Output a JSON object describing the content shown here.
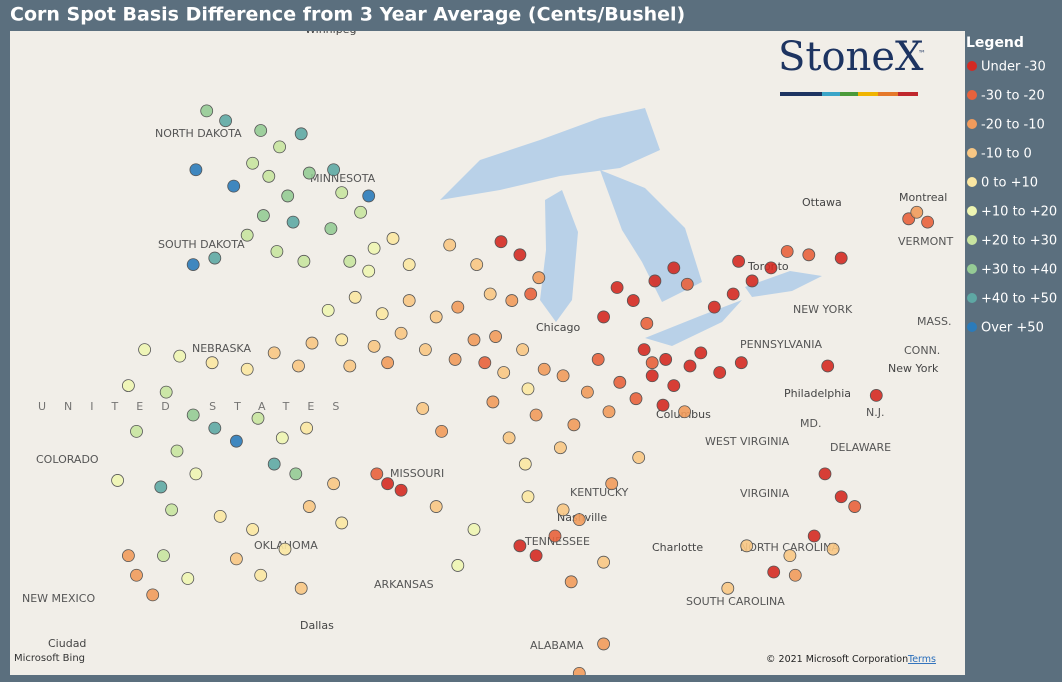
{
  "header": {
    "title": "Corn Spot Basis Difference from 3 Year Average (Cents/Bushel)"
  },
  "legend": {
    "title": "Legend",
    "classes": [
      {
        "label": "Under -30",
        "color": "#d42a22"
      },
      {
        "label": "-30 to -20",
        "color": "#e8623c"
      },
      {
        "label": "-20 to -10",
        "color": "#f19b5c"
      },
      {
        "label": "-10 to 0",
        "color": "#f8c784"
      },
      {
        "label": "0 to +10",
        "color": "#fbe7a2"
      },
      {
        "label": "+10 to +20",
        "color": "#eef5b2"
      },
      {
        "label": "+20 to +30",
        "color": "#c8e4a0"
      },
      {
        "label": "+30 to +40",
        "color": "#95cb95"
      },
      {
        "label": "+40 to +50",
        "color": "#5ea8a4"
      },
      {
        "label": "Over +50",
        "color": "#2b7bba"
      }
    ]
  },
  "logo": {
    "text": "StoneX",
    "mark": "™"
  },
  "attribution": {
    "copyright": "© 2021 Microsoft Corporation",
    "terms": "Terms",
    "provider": "Microsoft Bing"
  },
  "map": {
    "labels": [
      "NORTH DAKOTA",
      "MINNESOTA",
      "SOUTH DAKOTA",
      "NEBRASKA",
      "COLORADO",
      "MISSOURI",
      "KENTUCKY",
      "TENNESSEE",
      "OKLAHOMA",
      "ARKANSAS",
      "NEW MEXICO",
      "ALABAMA",
      "WEST VIRGINIA",
      "VIRGINIA",
      "NORTH CAROLINA",
      "SOUTH CAROLINA",
      "PENNSYLVANIA",
      "NEW YORK",
      "VERMONT",
      "MASS.",
      "CONN.",
      "N.J.",
      "MD.",
      "DELAWARE",
      "Ottawa",
      "Montreal",
      "Toronto",
      "Chicago",
      "Columbus",
      "Philadelphia",
      "New York",
      "Nashville",
      "Charlotte",
      "Dallas",
      "Ciudad",
      "Winnipeg",
      "UNITED STATES"
    ],
    "points": [
      [
        -100.5,
        48.6,
        7
      ],
      [
        -99.8,
        48.3,
        8
      ],
      [
        -98.5,
        48.0,
        7
      ],
      [
        -97.8,
        47.5,
        6
      ],
      [
        -98.8,
        47.0,
        6
      ],
      [
        -100.9,
        46.8,
        9
      ],
      [
        -99.5,
        46.3,
        9
      ],
      [
        -98.2,
        46.6,
        6
      ],
      [
        -97.5,
        46.0,
        7
      ],
      [
        -98.4,
        45.4,
        7
      ],
      [
        -99.0,
        44.8,
        6
      ],
      [
        -97.9,
        44.3,
        6
      ],
      [
        -101.0,
        43.9,
        9
      ],
      [
        -100.2,
        44.1,
        8
      ],
      [
        -97.3,
        45.2,
        8
      ],
      [
        -96.9,
        44.0,
        6
      ],
      [
        -96.7,
        46.7,
        7
      ],
      [
        -97.0,
        47.9,
        8
      ],
      [
        -95.5,
        46.1,
        6
      ],
      [
        -94.8,
        45.5,
        6
      ],
      [
        -95.9,
        45.0,
        7
      ],
      [
        -94.3,
        44.4,
        5
      ],
      [
        -95.2,
        44.0,
        6
      ],
      [
        -93.6,
        44.7,
        4
      ],
      [
        -93.0,
        43.9,
        4
      ],
      [
        -94.5,
        43.7,
        5
      ],
      [
        -95.8,
        46.8,
        8
      ],
      [
        -94.5,
        46.0,
        9
      ],
      [
        -91.5,
        44.5,
        3
      ],
      [
        -90.5,
        43.9,
        3
      ],
      [
        -89.6,
        44.6,
        0
      ],
      [
        -88.9,
        44.2,
        0
      ],
      [
        -88.2,
        43.5,
        2
      ],
      [
        -90.0,
        43.0,
        3
      ],
      [
        -89.2,
        42.8,
        2
      ],
      [
        -88.5,
        43.0,
        1
      ],
      [
        -96.0,
        42.5,
        5
      ],
      [
        -95.0,
        42.9,
        4
      ],
      [
        -94.0,
        42.4,
        4
      ],
      [
        -93.0,
        42.8,
        3
      ],
      [
        -92.0,
        42.3,
        3
      ],
      [
        -91.2,
        42.6,
        2
      ],
      [
        -95.5,
        41.6,
        4
      ],
      [
        -94.3,
        41.4,
        3
      ],
      [
        -93.3,
        41.8,
        3
      ],
      [
        -92.4,
        41.3,
        3
      ],
      [
        -91.3,
        41.0,
        2
      ],
      [
        -90.6,
        41.6,
        2
      ],
      [
        -95.2,
        40.8,
        3
      ],
      [
        -93.8,
        40.9,
        2
      ],
      [
        -89.8,
        41.7,
        2
      ],
      [
        -88.8,
        41.3,
        3
      ],
      [
        -89.5,
        40.6,
        3
      ],
      [
        -88.6,
        40.1,
        4
      ],
      [
        -89.9,
        39.7,
        2
      ],
      [
        -88.3,
        39.3,
        2
      ],
      [
        -89.3,
        38.6,
        3
      ],
      [
        -90.2,
        40.9,
        1
      ],
      [
        -88.0,
        40.7,
        2
      ],
      [
        -88.7,
        37.8,
        4
      ],
      [
        -87.3,
        40.5,
        2
      ],
      [
        -86.4,
        40.0,
        2
      ],
      [
        -85.6,
        39.4,
        2
      ],
      [
        -86.9,
        39.0,
        2
      ],
      [
        -86.0,
        41.0,
        1
      ],
      [
        -85.2,
        40.3,
        1
      ],
      [
        -87.4,
        38.3,
        3
      ],
      [
        -85.8,
        42.3,
        0
      ],
      [
        -84.7,
        42.8,
        0
      ],
      [
        -83.9,
        43.4,
        0
      ],
      [
        -83.2,
        43.8,
        0
      ],
      [
        -82.7,
        43.3,
        1
      ],
      [
        -84.2,
        42.1,
        1
      ],
      [
        -85.3,
        43.2,
        0
      ],
      [
        -84.3,
        41.3,
        0
      ],
      [
        -83.5,
        41.0,
        0
      ],
      [
        -84.0,
        40.5,
        0
      ],
      [
        -83.2,
        40.2,
        0
      ],
      [
        -82.6,
        40.8,
        0
      ],
      [
        -84.6,
        39.8,
        1
      ],
      [
        -83.6,
        39.6,
        0
      ],
      [
        -82.2,
        41.2,
        0
      ],
      [
        -81.5,
        40.6,
        0
      ],
      [
        -82.8,
        39.4,
        2
      ],
      [
        -84.0,
        40.9,
        1
      ],
      [
        -81.0,
        43.0,
        0
      ],
      [
        -80.3,
        43.4,
        0
      ],
      [
        -79.6,
        43.8,
        0
      ],
      [
        -81.7,
        42.6,
        0
      ],
      [
        -80.8,
        44.0,
        0
      ],
      [
        -78.2,
        44.2,
        1
      ],
      [
        -77.0,
        44.1,
        0
      ],
      [
        -79.0,
        44.3,
        1
      ],
      [
        -77.5,
        40.8,
        0
      ],
      [
        -80.7,
        40.9,
        0
      ],
      [
        -75.7,
        39.9,
        0
      ],
      [
        -74.5,
        45.3,
        1
      ],
      [
        -74.2,
        45.5,
        2
      ],
      [
        -73.8,
        45.2,
        1
      ],
      [
        -102.8,
        41.3,
        5
      ],
      [
        -101.5,
        41.1,
        5
      ],
      [
        -100.3,
        40.9,
        4
      ],
      [
        -99.0,
        40.7,
        4
      ],
      [
        -98.0,
        41.2,
        3
      ],
      [
        -97.1,
        40.8,
        3
      ],
      [
        -96.6,
        41.5,
        3
      ],
      [
        -103.4,
        40.2,
        5
      ],
      [
        -102.0,
        40.0,
        6
      ],
      [
        -101.0,
        39.3,
        7
      ],
      [
        -100.2,
        38.9,
        8
      ],
      [
        -99.4,
        38.5,
        9
      ],
      [
        -98.6,
        39.2,
        6
      ],
      [
        -97.7,
        38.6,
        5
      ],
      [
        -96.8,
        38.9,
        4
      ],
      [
        -98.0,
        37.8,
        8
      ],
      [
        -97.2,
        37.5,
        7
      ],
      [
        -101.6,
        38.2,
        6
      ],
      [
        -100.9,
        37.5,
        5
      ],
      [
        -103.1,
        38.8,
        6
      ],
      [
        -103.8,
        37.3,
        5
      ],
      [
        -102.2,
        37.1,
        8
      ],
      [
        -101.8,
        36.4,
        6
      ],
      [
        -100.0,
        36.2,
        4
      ],
      [
        -98.8,
        35.8,
        4
      ],
      [
        -97.6,
        35.2,
        4
      ],
      [
        -98.5,
        34.4,
        4
      ],
      [
        -99.4,
        34.9,
        3
      ],
      [
        -96.7,
        36.5,
        3
      ],
      [
        -95.8,
        37.2,
        3
      ],
      [
        -102.1,
        35.0,
        6
      ],
      [
        -101.2,
        34.3,
        5
      ],
      [
        -102.5,
        33.8,
        2
      ],
      [
        -97.0,
        34.0,
        3
      ],
      [
        -95.5,
        36.0,
        4
      ],
      [
        -93.8,
        37.2,
        0
      ],
      [
        -93.3,
        37.0,
        0
      ],
      [
        -94.2,
        37.5,
        1
      ],
      [
        -92.5,
        39.5,
        3
      ],
      [
        -91.8,
        38.8,
        2
      ],
      [
        -90.6,
        35.8,
        5
      ],
      [
        -91.2,
        34.7,
        5
      ],
      [
        -92.0,
        36.5,
        3
      ],
      [
        -88.6,
        36.8,
        4
      ],
      [
        -87.3,
        36.4,
        3
      ],
      [
        -86.7,
        36.1,
        2
      ],
      [
        -85.5,
        37.2,
        2
      ],
      [
        -84.5,
        38.0,
        3
      ],
      [
        -88.9,
        35.3,
        0
      ],
      [
        -88.3,
        35.0,
        0
      ],
      [
        -87.6,
        35.6,
        1
      ],
      [
        -87.0,
        34.2,
        2
      ],
      [
        -85.8,
        34.8,
        3
      ],
      [
        -77.6,
        37.5,
        0
      ],
      [
        -77.0,
        36.8,
        0
      ],
      [
        -76.5,
        36.5,
        1
      ],
      [
        -78.0,
        35.6,
        0
      ],
      [
        -78.9,
        35.0,
        3
      ],
      [
        -79.5,
        34.5,
        0
      ],
      [
        -78.7,
        34.4,
        2
      ],
      [
        -77.3,
        35.2,
        3
      ],
      [
        -80.5,
        35.3,
        3
      ],
      [
        -81.2,
        34.0,
        3
      ],
      [
        -86.7,
        31.4,
        2
      ],
      [
        -85.8,
        32.3,
        2
      ],
      [
        -103.4,
        35.0,
        2
      ],
      [
        -103.1,
        34.4,
        2
      ]
    ]
  }
}
